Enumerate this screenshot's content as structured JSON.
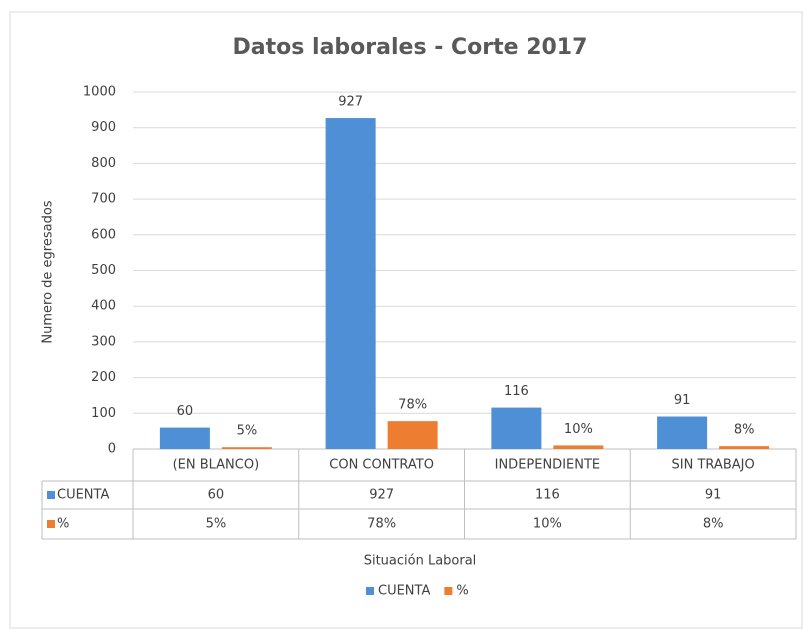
{
  "chart_data": {
    "type": "bar",
    "title": "Datos laborales - Corte 2017",
    "y_label": "Numero de egresados",
    "x_label": "Situación Laboral",
    "categories": [
      "(EN BLANCO)",
      "CON CONTRATO",
      "INDEPENDIENTE",
      "SIN TRABAJO"
    ],
    "series": [
      {
        "name": "CUENTA",
        "color": "#4f8fd6",
        "values": [
          60,
          927,
          116,
          91
        ]
      },
      {
        "name": "%",
        "color": "#ed7d31",
        "values": [
          5,
          78,
          10,
          8
        ],
        "value_labels": [
          "5%",
          "78%",
          "10%",
          "8%"
        ]
      }
    ],
    "ylim": [
      0,
      1000
    ],
    "yticks": [
      0,
      100,
      200,
      300,
      400,
      500,
      600,
      700,
      800,
      900,
      1000
    ],
    "grid": true,
    "legend": "bottom"
  }
}
